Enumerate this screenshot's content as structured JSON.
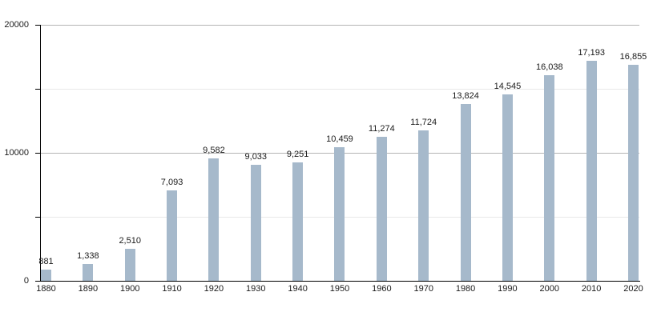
{
  "chart_data": {
    "type": "bar",
    "title": "",
    "xlabel": "",
    "ylabel": "",
    "categories": [
      "1880",
      "1890",
      "1900",
      "1910",
      "1920",
      "1930",
      "1940",
      "1950",
      "1960",
      "1970",
      "1980",
      "1990",
      "2000",
      "2010",
      "2020"
    ],
    "values": [
      881,
      1338,
      2510,
      7093,
      9582,
      9033,
      9251,
      10459,
      11274,
      11724,
      13824,
      14545,
      16038,
      17193,
      16855
    ],
    "value_labels": [
      "881",
      "1,338",
      "2,510",
      "7,093",
      "9,582",
      "9,033",
      "9,251",
      "10,459",
      "11,274",
      "11,724",
      "13,824",
      "14,545",
      "16,038",
      "17,193",
      "16,855"
    ],
    "ylim": [
      0,
      20000
    ],
    "yticks": [
      {
        "value": 0,
        "label": "0",
        "major": true
      },
      {
        "value": 5000,
        "label": "",
        "major": false
      },
      {
        "value": 10000,
        "label": "10000",
        "major": true
      },
      {
        "value": 15000,
        "label": "",
        "major": false
      },
      {
        "value": 20000,
        "label": "20000",
        "major": true
      }
    ],
    "grid": "horizontal",
    "legend": null,
    "colors": {
      "bar": "#a6b9cb",
      "axis": "#000000",
      "major_gridline": "#b3b3b3",
      "minor_gridline": "#e9e9e9",
      "text": "#1a1a1a"
    }
  }
}
